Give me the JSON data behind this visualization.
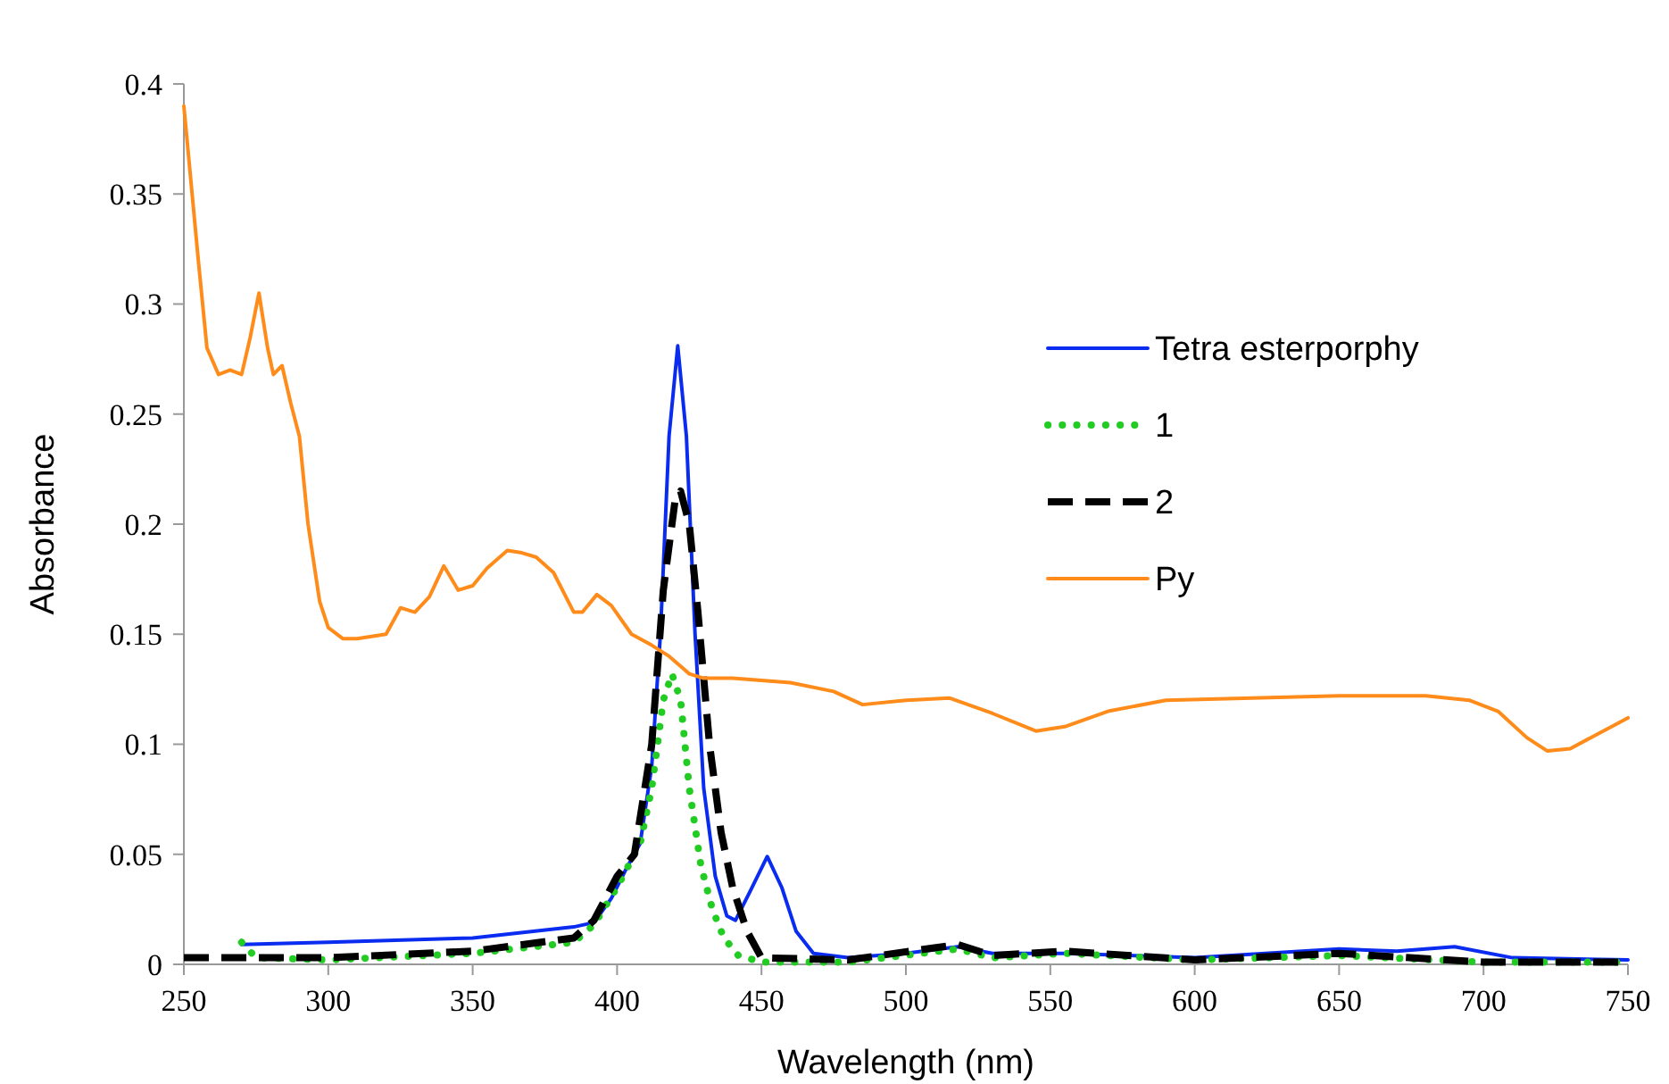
{
  "chart_data": {
    "type": "line",
    "xlabel": "Wavelength  (nm)",
    "ylabel": "Absorbance",
    "xlim": [
      250,
      750
    ],
    "xticks": [
      250,
      300,
      350,
      400,
      450,
      500,
      550,
      600,
      650,
      700,
      750
    ],
    "ylim": [
      0,
      0.4
    ],
    "yticks": [
      0,
      0.05,
      0.1,
      0.15,
      0.2,
      0.25,
      0.3,
      0.35,
      0.4
    ],
    "grid": false,
    "legend": "right",
    "marker": "none",
    "series": [
      {
        "name": "Tetra esterporphy",
        "color": "#0a2cf0",
        "line_style": "solid",
        "x": [
          270,
          300,
          350,
          385,
          392,
          398,
          403,
          408,
          412,
          415,
          418,
          421,
          424,
          427,
          430,
          434,
          438,
          441,
          446,
          452,
          457,
          462,
          468,
          480,
          500,
          518,
          530,
          555,
          600,
          650,
          670,
          690,
          710,
          750
        ],
        "values": [
          0.009,
          0.01,
          0.012,
          0.017,
          0.019,
          0.03,
          0.043,
          0.055,
          0.09,
          0.15,
          0.24,
          0.281,
          0.24,
          0.15,
          0.08,
          0.04,
          0.022,
          0.02,
          0.033,
          0.049,
          0.035,
          0.015,
          0.005,
          0.003,
          0.005,
          0.008,
          0.005,
          0.005,
          0.003,
          0.007,
          0.006,
          0.008,
          0.003,
          0.002
        ]
      },
      {
        "name": "1",
        "color": "#22cc22",
        "line_style": "dotted",
        "x": [
          270,
          275,
          300,
          350,
          385,
          392,
          400,
          408,
          412,
          416,
          419,
          422,
          425,
          429,
          433,
          437,
          442,
          450,
          480,
          518,
          530,
          555,
          600,
          650,
          700,
          750
        ],
        "values": [
          0.01,
          0.003,
          0.002,
          0.005,
          0.01,
          0.018,
          0.035,
          0.055,
          0.08,
          0.12,
          0.132,
          0.12,
          0.08,
          0.045,
          0.025,
          0.012,
          0.004,
          0.001,
          0.001,
          0.007,
          0.003,
          0.005,
          0.002,
          0.004,
          0.001,
          0.001
        ]
      },
      {
        "name": "2",
        "color": "#000000",
        "line_style": "dashed",
        "x": [
          250,
          300,
          350,
          385,
          392,
          400,
          406,
          412,
          416,
          420,
          422,
          425,
          428,
          432,
          436,
          440,
          445,
          450,
          480,
          518,
          530,
          555,
          600,
          650,
          700,
          750
        ],
        "values": [
          0.003,
          0.003,
          0.006,
          0.012,
          0.02,
          0.04,
          0.05,
          0.1,
          0.17,
          0.21,
          0.215,
          0.2,
          0.16,
          0.1,
          0.06,
          0.035,
          0.015,
          0.003,
          0.002,
          0.009,
          0.004,
          0.006,
          0.002,
          0.005,
          0.001,
          0.001
        ]
      },
      {
        "name": "Py",
        "color": "#ff8c1a",
        "line_style": "solid",
        "x": [
          250,
          255,
          258,
          262,
          266,
          270,
          273,
          276,
          279,
          281,
          284,
          287,
          290,
          293,
          297,
          300,
          305,
          310,
          315,
          320,
          325,
          330,
          335,
          340,
          345,
          350,
          355,
          362,
          367,
          372,
          378,
          385,
          388,
          393,
          398,
          405,
          412,
          418,
          425,
          430,
          440,
          460,
          475,
          485,
          500,
          515,
          530,
          545,
          555,
          570,
          590,
          620,
          650,
          680,
          695,
          705,
          715,
          722,
          730,
          740,
          750
        ],
        "values": [
          0.39,
          0.32,
          0.28,
          0.268,
          0.27,
          0.268,
          0.285,
          0.305,
          0.28,
          0.268,
          0.272,
          0.255,
          0.24,
          0.2,
          0.165,
          0.153,
          0.148,
          0.148,
          0.149,
          0.15,
          0.162,
          0.16,
          0.167,
          0.181,
          0.17,
          0.172,
          0.18,
          0.188,
          0.187,
          0.185,
          0.178,
          0.16,
          0.16,
          0.168,
          0.163,
          0.15,
          0.145,
          0.14,
          0.132,
          0.13,
          0.13,
          0.128,
          0.124,
          0.118,
          0.12,
          0.121,
          0.114,
          0.106,
          0.108,
          0.115,
          0.12,
          0.121,
          0.122,
          0.122,
          0.12,
          0.115,
          0.103,
          0.097,
          0.098,
          0.105,
          0.112
        ]
      }
    ]
  }
}
